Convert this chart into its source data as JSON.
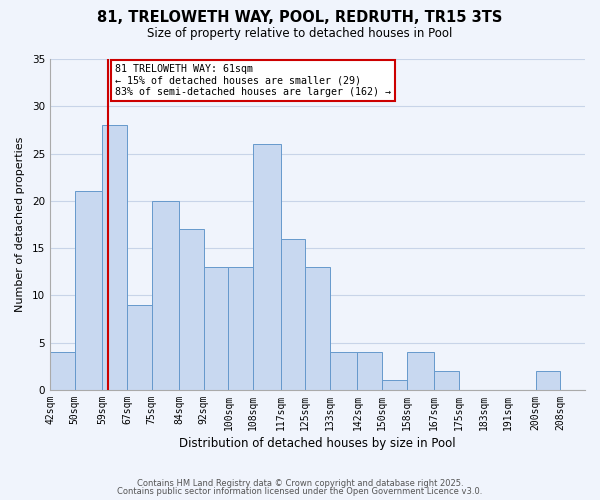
{
  "title_line1": "81, TRELOWETH WAY, POOL, REDRUTH, TR15 3TS",
  "title_line2": "Size of property relative to detached houses in Pool",
  "xlabel": "Distribution of detached houses by size in Pool",
  "ylabel": "Number of detached properties",
  "bin_labels": [
    "42sqm",
    "50sqm",
    "59sqm",
    "67sqm",
    "75sqm",
    "84sqm",
    "92sqm",
    "100sqm",
    "108sqm",
    "117sqm",
    "125sqm",
    "133sqm",
    "142sqm",
    "150sqm",
    "158sqm",
    "167sqm",
    "175sqm",
    "183sqm",
    "191sqm",
    "200sqm",
    "208sqm"
  ],
  "bin_edges": [
    42,
    50,
    59,
    67,
    75,
    84,
    92,
    100,
    108,
    117,
    125,
    133,
    142,
    150,
    158,
    167,
    175,
    183,
    191,
    200,
    208
  ],
  "bar_heights": [
    4,
    21,
    28,
    9,
    20,
    17,
    13,
    13,
    26,
    16,
    13,
    4,
    4,
    1,
    4,
    2,
    0,
    0,
    0,
    2,
    0
  ],
  "bar_color": "#c8d8f0",
  "bar_edge_color": "#6699cc",
  "ref_line_x": 61,
  "ref_line_color": "#cc0000",
  "annotation_line1": "81 TRELOWETH WAY: 61sqm",
  "annotation_line2": "← 15% of detached houses are smaller (29)",
  "annotation_line3": "83% of semi-detached houses are larger (162) →",
  "annotation_box_edge": "#cc0000",
  "ylim": [
    0,
    35
  ],
  "yticks": [
    0,
    5,
    10,
    15,
    20,
    25,
    30,
    35
  ],
  "footer_line1": "Contains HM Land Registry data © Crown copyright and database right 2025.",
  "footer_line2": "Contains public sector information licensed under the Open Government Licence v3.0.",
  "bg_color": "#f0f4fc",
  "grid_color": "#c8d4e8"
}
